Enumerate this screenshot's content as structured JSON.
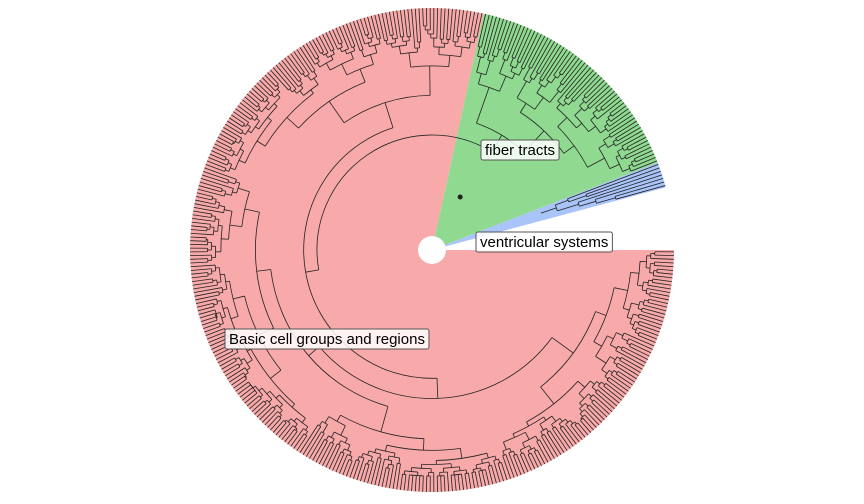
{
  "diagram": {
    "type": "circular-dendrogram",
    "root_marker": true,
    "groups": [
      {
        "label": "Basic cell groups and regions",
        "color": "#f8a9a9",
        "leaves": 320
      },
      {
        "label": "fiber tracts",
        "color": "#8fd990",
        "leaves": 64
      },
      {
        "label": "ventricular systems",
        "color": "#a9c4f8",
        "leaves": 7
      }
    ],
    "branch_color": "#222222"
  }
}
